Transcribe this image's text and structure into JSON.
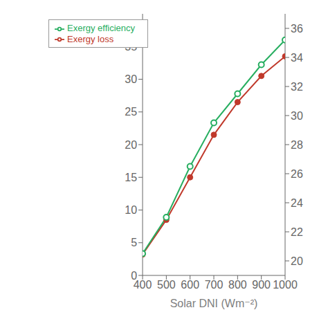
{
  "chart_data": {
    "type": "line",
    "xlabel": "Solar DNI (Wm⁻²)",
    "x": [
      400,
      500,
      600,
      700,
      800,
      900,
      1000
    ],
    "xlim": [
      400,
      1000
    ],
    "xticks": [
      400,
      500,
      600,
      700,
      800,
      900,
      1000
    ],
    "ylim": [
      0,
      40
    ],
    "yticks": [
      0,
      5,
      10,
      15,
      20,
      25,
      30,
      35
    ],
    "y2lim": [
      19,
      37
    ],
    "y2ticks": [
      20,
      22,
      24,
      26,
      28,
      30,
      32,
      34,
      36
    ],
    "grid": false,
    "legend": "upper left",
    "series": [
      {
        "name": "Exergy loss",
        "color": "#c0392b",
        "marker": "circle",
        "values": [
          3.2,
          8.5,
          15.0,
          21.5,
          26.5,
          30.5,
          33.5
        ]
      },
      {
        "name": "Exergy efficiency",
        "color": "#27ae60",
        "marker": "hollow_circle",
        "axis": "y2",
        "values": [
          20.5,
          23.0,
          26.5,
          29.5,
          31.5,
          33.5,
          35.2
        ]
      }
    ]
  }
}
